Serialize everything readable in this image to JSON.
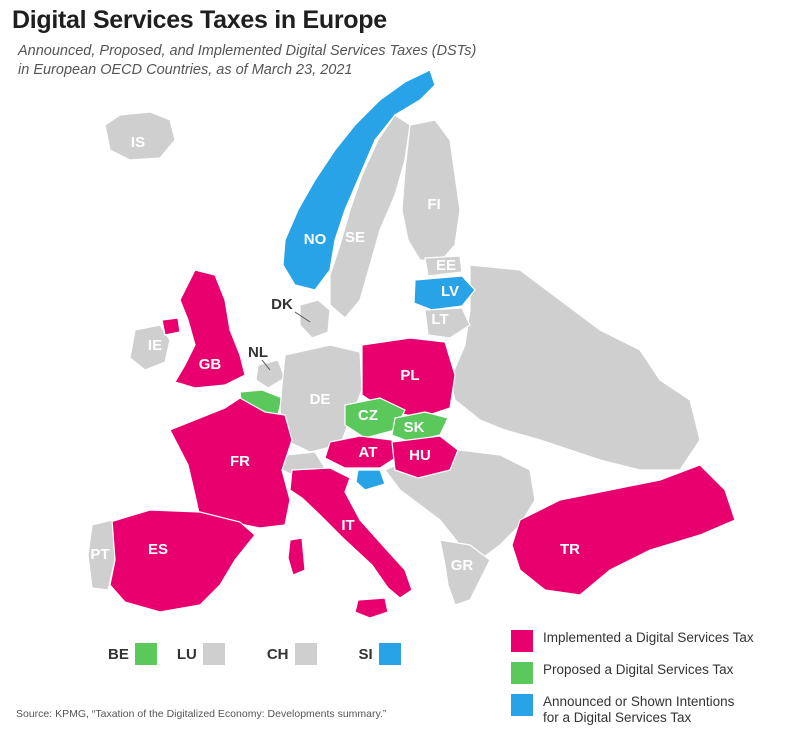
{
  "title": "Digital Services Taxes in Europe",
  "subtitle_line1": "Announced, Proposed, and Implemented Digital Services Taxes (DSTs)",
  "subtitle_line2": "in European OECD Countries, as of March 23, 2021",
  "colors": {
    "implemented": "#e8006f",
    "proposed": "#5ac85a",
    "announced": "#29a3e8",
    "none": "#cfcfcf",
    "background": "#ffffff"
  },
  "labels": {
    "IS": "IS",
    "NO": "NO",
    "SE": "SE",
    "FI": "FI",
    "EE": "EE",
    "LV": "LV",
    "LT": "LT",
    "DK": "DK",
    "IE": "IE",
    "GB": "GB",
    "NL": "NL",
    "DE": "DE",
    "PL": "PL",
    "CZ": "CZ",
    "SK": "SK",
    "AT": "AT",
    "HU": "HU",
    "FR": "FR",
    "IT": "IT",
    "ES": "ES",
    "PT": "PT",
    "GR": "GR",
    "TR": "TR"
  },
  "small_countries": [
    {
      "code": "BE",
      "status": "proposed"
    },
    {
      "code": "LU",
      "status": "none"
    },
    {
      "code": "CH",
      "status": "none"
    },
    {
      "code": "SI",
      "status": "announced"
    }
  ],
  "legend": [
    {
      "status": "implemented",
      "label": "Implemented a Digital Services Tax"
    },
    {
      "status": "proposed",
      "label": "Proposed a Digital Services Tax"
    },
    {
      "status": "announced",
      "label": "Announced or Shown Intentions\nfor a Digital Services Tax"
    }
  ],
  "source": "Source: KPMG, “Taxation of the Digitalized Economy: Developments summary.”"
}
